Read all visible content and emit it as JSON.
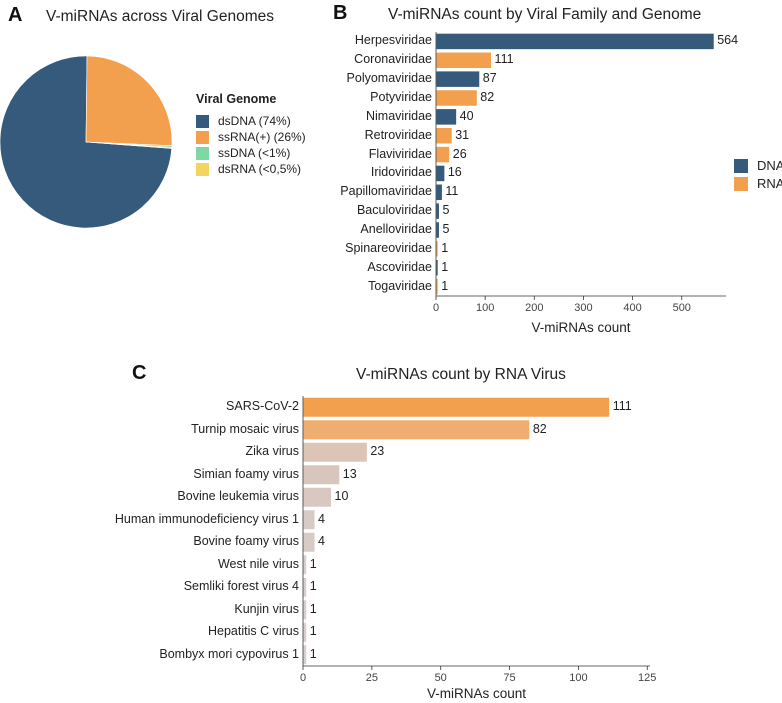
{
  "panels": {
    "a": "A",
    "b": "B",
    "c": "C"
  },
  "chart_data": [
    {
      "type": "pie",
      "title": "V-miRNAs across Viral Genomes",
      "legend_title": "Viral Genome",
      "legend_position": "right",
      "slices": [
        {
          "name": "dsDNA (74%)",
          "value": 74,
          "color": "#355a7c"
        },
        {
          "name": "ssRNA(+) (26%)",
          "value": 25.5,
          "color": "#f2a04e"
        },
        {
          "name": "ssDNA (<1%)",
          "value": 0.3,
          "color": "#7ed8a4"
        },
        {
          "name": "dsRNA (<0,5%)",
          "value": 0.2,
          "color": "#f3d460"
        }
      ]
    },
    {
      "type": "bar",
      "orientation": "horizontal",
      "title": "V-miRNAs count by Viral Family and Genome",
      "xlabel": "V-miRNAs count",
      "xlim": [
        0,
        590
      ],
      "xticks": [
        0,
        100,
        200,
        300,
        400,
        500
      ],
      "legend_position": "right",
      "legend": [
        {
          "name": "DNA",
          "color": "#355a7c"
        },
        {
          "name": "RNA",
          "color": "#f2a04e"
        }
      ],
      "bars": [
        {
          "category": "Herpesviridae",
          "value": 564,
          "genome": "DNA"
        },
        {
          "category": "Coronaviridae",
          "value": 111,
          "genome": "RNA"
        },
        {
          "category": "Polyomaviridae",
          "value": 87,
          "genome": "DNA"
        },
        {
          "category": "Potyviridae",
          "value": 82,
          "genome": "RNA"
        },
        {
          "category": "Nimaviridae",
          "value": 40,
          "genome": "DNA"
        },
        {
          "category": "Retroviridae",
          "value": 31,
          "genome": "RNA"
        },
        {
          "category": "Flaviviridae",
          "value": 26,
          "genome": "RNA"
        },
        {
          "category": "Iridoviridae",
          "value": 16,
          "genome": "DNA"
        },
        {
          "category": "Papillomaviridae",
          "value": 11,
          "genome": "DNA"
        },
        {
          "category": "Baculoviridae",
          "value": 5,
          "genome": "DNA"
        },
        {
          "category": "Anelloviridae",
          "value": 5,
          "genome": "DNA"
        },
        {
          "category": "Spinareoviridae",
          "value": 1,
          "genome": "RNA"
        },
        {
          "category": "Ascoviridae",
          "value": 1,
          "genome": "DNA"
        },
        {
          "category": "Togaviridae",
          "value": 1,
          "genome": "RNA"
        }
      ]
    },
    {
      "type": "bar",
      "orientation": "horizontal",
      "title": "V-miRNAs count by RNA Virus",
      "xlabel": "V-miRNAs count",
      "xlim": [
        0,
        126
      ],
      "xticks": [
        0,
        25,
        50,
        75,
        100,
        125
      ],
      "bars": [
        {
          "category": "SARS-CoV-2",
          "value": 111,
          "color": "#f2a04e"
        },
        {
          "category": "Turnip mosaic virus",
          "value": 82,
          "color": "#efad72"
        },
        {
          "category": "Zika virus",
          "value": 23,
          "color": "#dcc4b7"
        },
        {
          "category": "Simian foamy virus",
          "value": 13,
          "color": "#d8c6bd"
        },
        {
          "category": "Bovine leukemia virus",
          "value": 10,
          "color": "#d8c8c1"
        },
        {
          "category": "Human immunodeficiency virus 1",
          "value": 4,
          "color": "#d7cbc5"
        },
        {
          "category": "Bovine foamy virus",
          "value": 4,
          "color": "#d7cbc5"
        },
        {
          "category": "West nile virus",
          "value": 1,
          "color": "#d6cfcc"
        },
        {
          "category": "Semliki forest virus 4",
          "value": 1,
          "color": "#d6cfcc"
        },
        {
          "category": "Kunjin virus",
          "value": 1,
          "color": "#d6cfcc"
        },
        {
          "category": "Hepatitis C virus",
          "value": 1,
          "color": "#d6cfcc"
        },
        {
          "category": "Bombyx mori cypovirus 1",
          "value": 1,
          "color": "#d6cfcc"
        }
      ]
    }
  ]
}
